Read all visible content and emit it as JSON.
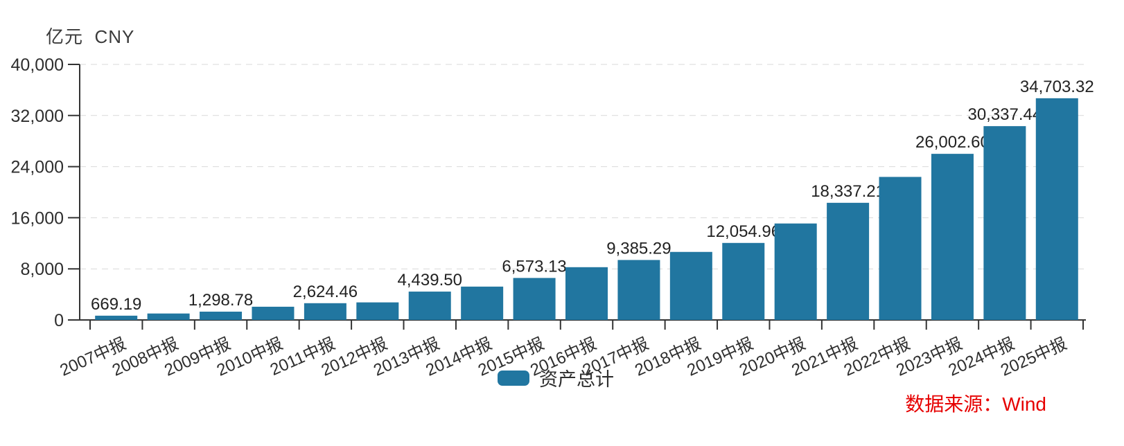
{
  "chart_data": {
    "type": "bar",
    "unit_label": "亿元  CNY",
    "legend": {
      "label": "资产总计"
    },
    "source_note": "数据来源：Wind",
    "categories": [
      "2007中报",
      "2008中报",
      "2009中报",
      "2010中报",
      "2011中报",
      "2012中报",
      "2013中报",
      "2014中报",
      "2015中报",
      "2016中报",
      "2017中报",
      "2018中报",
      "2019中报",
      "2020中报",
      "2021中报",
      "2022中报",
      "2023中报",
      "2024中报",
      "2025中报"
    ],
    "series": [
      {
        "name": "资产总计",
        "values": [
          669.19,
          1010,
          1298.78,
          2070,
          2624.46,
          2750,
          4439.5,
          5220,
          6573.13,
          8260,
          9385.29,
          10650,
          12054.96,
          15100,
          18337.21,
          22390,
          26002.6,
          30337.44,
          34703.32
        ],
        "data_labels": [
          "669.19",
          null,
          "1,298.78",
          null,
          "2,624.46",
          null,
          "4,439.50",
          null,
          "6,573.13",
          null,
          "9,385.29",
          null,
          "12,054.96",
          null,
          "18,337.21",
          null,
          "26,002.60",
          "30,337.44",
          "34,703.32"
        ]
      }
    ],
    "ylim": [
      0,
      40000
    ],
    "yticks": [
      {
        "value": 0,
        "label": "0"
      },
      {
        "value": 8000,
        "label": "8,000"
      },
      {
        "value": 16000,
        "label": "16,000"
      },
      {
        "value": 24000,
        "label": "24,000"
      },
      {
        "value": 32000,
        "label": "32,000"
      },
      {
        "value": 40000,
        "label": "40,000"
      }
    ],
    "grid": "horizontal-dashed",
    "legend_position": "bottom-center",
    "x_label_rotation_deg": -24,
    "colors": {
      "bar": "#2176A0",
      "axis": "#333333",
      "grid": "#d9d9d9",
      "text": "#2e2e2e",
      "value_label": "#222222",
      "source": "#e60000"
    }
  }
}
